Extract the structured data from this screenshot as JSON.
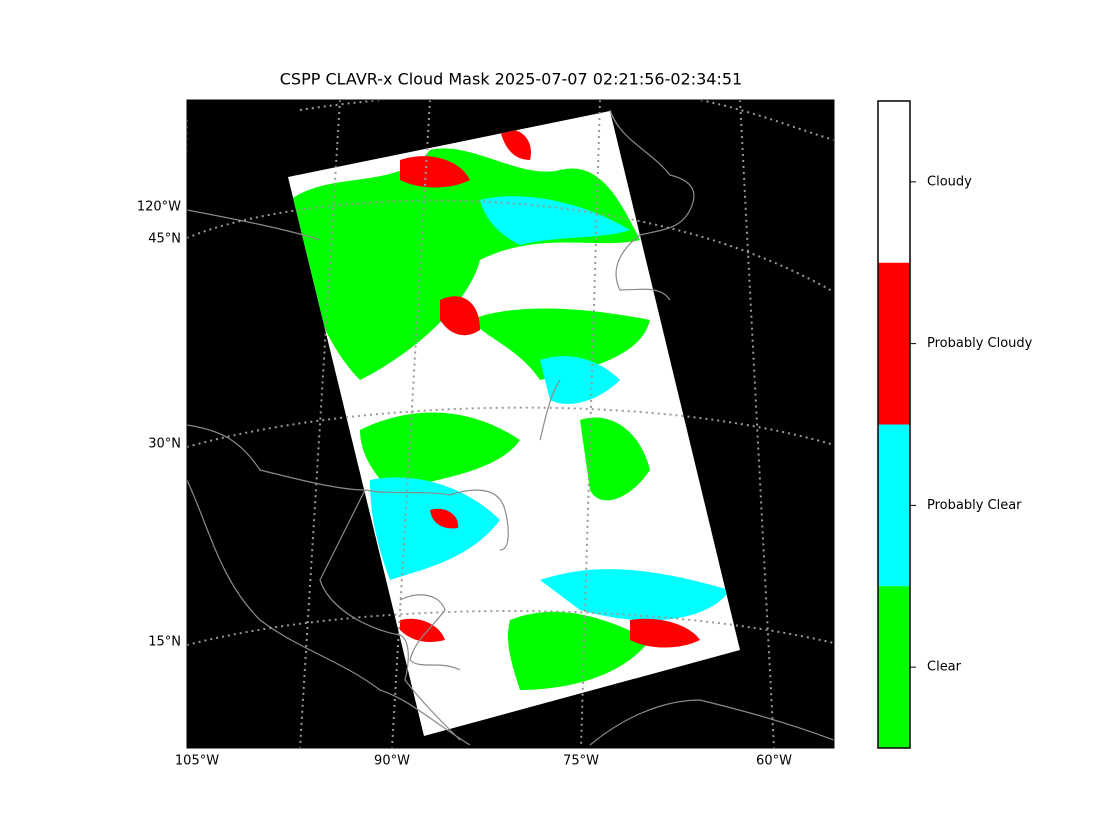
{
  "title": "CSPP CLAVR-x Cloud Mask 2025-07-07 02:21:56-02:34:51",
  "map": {
    "left_labels": [
      "120°W",
      "45°N",
      "30°N",
      "15°N"
    ],
    "bottom_labels": [
      "105°W",
      "90°W",
      "75°W",
      "60°W"
    ],
    "background": "#000000"
  },
  "colorbar": {
    "classes": [
      {
        "label": "Cloudy",
        "color": "#ffffff"
      },
      {
        "label": "Probably Cloudy",
        "color": "#ff0000"
      },
      {
        "label": "Probably Clear",
        "color": "#00ffff"
      },
      {
        "label": "Clear",
        "color": "#00ff00"
      }
    ]
  }
}
